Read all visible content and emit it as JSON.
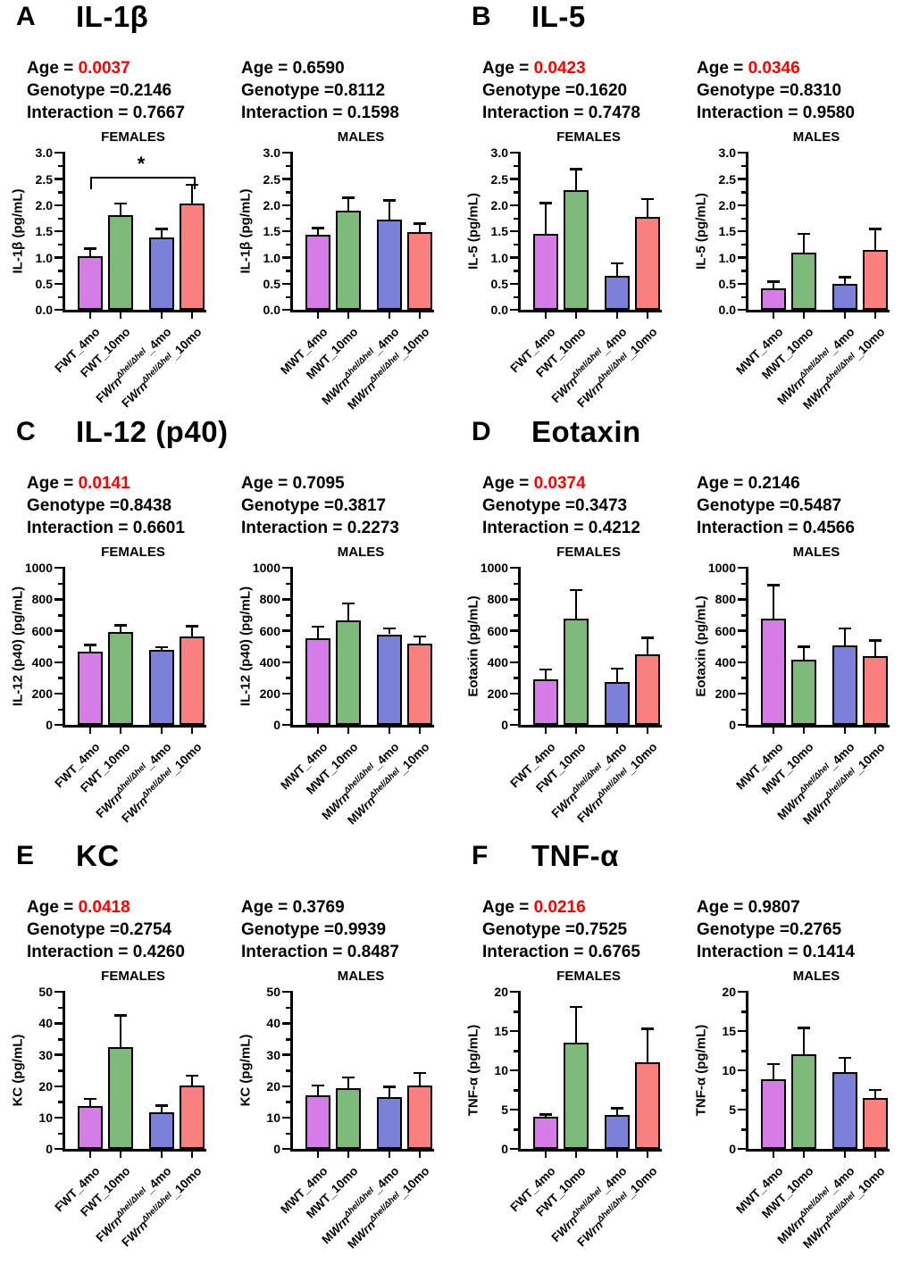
{
  "colors": {
    "bars": [
      "#d57ce6",
      "#7dba7a",
      "#7b80d9",
      "#fa7f7f"
    ],
    "significant": "#fe0000",
    "axis": "#000000"
  },
  "category_sets": {
    "F": {
      "parts": [
        [
          {
            "t": "FWT_4mo"
          }
        ],
        [
          {
            "t": "FWT_10mo"
          }
        ],
        [
          {
            "t": "F"
          },
          {
            "t": "Wrn",
            "i": true
          },
          {
            "t": "Δhel/Δhel",
            "i": true,
            "sup": true
          },
          {
            "t": "_4mo"
          }
        ],
        [
          {
            "t": "F"
          },
          {
            "t": "Wrn",
            "i": true
          },
          {
            "t": "Δhel/Δhel",
            "i": true,
            "sup": true
          },
          {
            "t": "_10mo"
          }
        ]
      ]
    },
    "M": {
      "parts": [
        [
          {
            "t": "MWT_4mo"
          }
        ],
        [
          {
            "t": "MWT_10mo"
          }
        ],
        [
          {
            "t": "M"
          },
          {
            "t": "Wrn",
            "i": true
          },
          {
            "t": "Δhel/Δhel",
            "i": true,
            "sup": true
          },
          {
            "t": "_4mo"
          }
        ],
        [
          {
            "t": "M"
          },
          {
            "t": "Wrn",
            "i": true
          },
          {
            "t": "Δhel/Δhel",
            "i": true,
            "sup": true
          },
          {
            "t": "_10mo"
          }
        ]
      ]
    }
  },
  "figure": {
    "panels": [
      {
        "letter": "A",
        "title": "IL-1β",
        "stats_female": {
          "age": {
            "label": "Age = ",
            "value": "0.0037",
            "red": true
          },
          "genotype": {
            "label": "Genotype =",
            "value": "0.2146",
            "red": false
          },
          "interaction": {
            "label": "Interaction = ",
            "value": "0.7667",
            "red": false
          }
        },
        "stats_male": {
          "age": {
            "label": "Age = ",
            "value": "0.6590",
            "red": false
          },
          "genotype": {
            "label": "Genotype =",
            "value": "0.8112",
            "red": false
          },
          "interaction": {
            "label": "Interaction = ",
            "value": "0.1598",
            "red": false
          }
        }
      },
      {
        "letter": "B",
        "title": "IL-5",
        "stats_female": {
          "age": {
            "label": "Age = ",
            "value": "0.0423",
            "red": true
          },
          "genotype": {
            "label": "Genotype =",
            "value": "0.1620",
            "red": false
          },
          "interaction": {
            "label": "Interaction = ",
            "value": "0.7478",
            "red": false
          }
        },
        "stats_male": {
          "age": {
            "label": "Age = ",
            "value": "0.0346",
            "red": true
          },
          "genotype": {
            "label": "Genotype =",
            "value": "0.8310",
            "red": false
          },
          "interaction": {
            "label": "Interaction = ",
            "value": "0.9580",
            "red": false
          }
        }
      },
      {
        "letter": "C",
        "title": "IL-12 (p40)",
        "stats_female": {
          "age": {
            "label": "Age = ",
            "value": "0.0141",
            "red": true
          },
          "genotype": {
            "label": "Genotype =",
            "value": "0.8438",
            "red": false
          },
          "interaction": {
            "label": "Interaction = ",
            "value": "0.6601",
            "red": false
          }
        },
        "stats_male": {
          "age": {
            "label": "Age = ",
            "value": "0.7095",
            "red": false
          },
          "genotype": {
            "label": "Genotype =",
            "value": "0.3817",
            "red": false
          },
          "interaction": {
            "label": "Interaction = ",
            "value": "0.2273",
            "red": false
          }
        }
      },
      {
        "letter": "D",
        "title": "Eotaxin",
        "stats_female": {
          "age": {
            "label": "Age = ",
            "value": "0.0374",
            "red": true
          },
          "genotype": {
            "label": "Genotype =",
            "value": "0.3473",
            "red": false
          },
          "interaction": {
            "label": "Interaction = ",
            "value": "0.4212",
            "red": false
          }
        },
        "stats_male": {
          "age": {
            "label": "Age = ",
            "value": "0.2146",
            "red": false
          },
          "genotype": {
            "label": "Genotype =",
            "value": "0.5487",
            "red": false
          },
          "interaction": {
            "label": "Interaction = ",
            "value": "0.4566",
            "red": false
          }
        }
      },
      {
        "letter": "E",
        "title": "KC",
        "stats_female": {
          "age": {
            "label": "Age = ",
            "value": "0.0418",
            "red": true
          },
          "genotype": {
            "label": "Genotype =",
            "value": "0.2754",
            "red": false
          },
          "interaction": {
            "label": "Interaction = ",
            "value": "0.4260",
            "red": false
          }
        },
        "stats_male": {
          "age": {
            "label": "Age = ",
            "value": "0.3769",
            "red": false
          },
          "genotype": {
            "label": "Genotype =",
            "value": "0.9939",
            "red": false
          },
          "interaction": {
            "label": "Interaction = ",
            "value": "0.8487",
            "red": false
          }
        }
      },
      {
        "letter": "F",
        "title": "TNF-α",
        "stats_female": {
          "age": {
            "label": "Age = ",
            "value": "0.0216",
            "red": true
          },
          "genotype": {
            "label": "Genotype =",
            "value": "0.7525",
            "red": false
          },
          "interaction": {
            "label": "Interaction = ",
            "value": "0.6765",
            "red": false
          }
        },
        "stats_male": {
          "age": {
            "label": "Age = ",
            "value": "0.9807",
            "red": false
          },
          "genotype": {
            "label": "Genotype =",
            "value": "0.2765",
            "red": false
          },
          "interaction": {
            "label": "Interaction = ",
            "value": "0.1414",
            "red": false
          }
        }
      }
    ]
  },
  "chart_data": [
    {
      "type": "bar",
      "panel": "A",
      "title": "FEMALES",
      "ylabel": "IL-1β (pg/mL)",
      "ylim": [
        0,
        3.0
      ],
      "yticks": [
        0,
        0.5,
        1.0,
        1.5,
        2.0,
        2.5,
        3.0
      ],
      "ytick_labels": [
        "0.0",
        "0.5",
        "1.0",
        "1.5",
        "2.0",
        "2.5",
        "3.0"
      ],
      "cat_set": "F",
      "categories": [
        "FWT_4mo",
        "FWT_10mo",
        "FWrnΔhel/Δhel_4mo",
        "FWrnΔhel/Δhel_10mo"
      ],
      "values": [
        1.03,
        1.81,
        1.38,
        2.03
      ],
      "errors": [
        0.14,
        0.22,
        0.17,
        0.36
      ],
      "sig": {
        "from": 0,
        "to": 3,
        "label": "*",
        "y": 2.55
      }
    },
    {
      "type": "bar",
      "panel": "A",
      "title": "MALES",
      "ylabel": "IL-1β (pg/mL)",
      "ylim": [
        0,
        3.0
      ],
      "yticks": [
        0,
        0.5,
        1.0,
        1.5,
        2.0,
        2.5,
        3.0
      ],
      "ytick_labels": [
        "0.0",
        "0.5",
        "1.0",
        "1.5",
        "2.0",
        "2.5",
        "3.0"
      ],
      "cat_set": "M",
      "categories": [
        "MWT_4mo",
        "MWT_10mo",
        "MWrnΔhel/Δhel_4mo",
        "MWrnΔhel/Δhel_10mo"
      ],
      "values": [
        1.44,
        1.89,
        1.73,
        1.49
      ],
      "errors": [
        0.12,
        0.25,
        0.36,
        0.16
      ]
    },
    {
      "type": "bar",
      "panel": "B",
      "title": "FEMALES",
      "ylabel": "IL-5 (pg/mL)",
      "ylim": [
        0,
        3.0
      ],
      "yticks": [
        0,
        0.5,
        1.0,
        1.5,
        2.0,
        2.5,
        3.0
      ],
      "ytick_labels": [
        "0.0",
        "0.5",
        "1.0",
        "1.5",
        "2.0",
        "2.5",
        "3.0"
      ],
      "cat_set": "F",
      "categories": [
        "FWT_4mo",
        "FWT_10mo",
        "FWrnΔhel/Δhel_4mo",
        "FWrnΔhel/Δhel_10mo"
      ],
      "values": [
        1.46,
        2.28,
        0.66,
        1.78
      ],
      "errors": [
        0.58,
        0.41,
        0.23,
        0.34
      ]
    },
    {
      "type": "bar",
      "panel": "B",
      "title": "MALES",
      "ylabel": "IL-5 (pg/mL)",
      "ylim": [
        0,
        3.0
      ],
      "yticks": [
        0,
        0.5,
        1.0,
        1.5,
        2.0,
        2.5,
        3.0
      ],
      "ytick_labels": [
        "0.0",
        "0.5",
        "1.0",
        "1.5",
        "2.0",
        "2.5",
        "3.0"
      ],
      "cat_set": "M",
      "categories": [
        "MWT_4mo",
        "MWT_10mo",
        "MWrnΔhel/Δhel_4mo",
        "MWrnΔhel/Δhel_10mo"
      ],
      "values": [
        0.42,
        1.1,
        0.5,
        1.15
      ],
      "errors": [
        0.12,
        0.35,
        0.13,
        0.4
      ]
    },
    {
      "type": "bar",
      "panel": "C",
      "title": "FEMALES",
      "ylabel": "IL-12 (p40) (pg/mL)",
      "ylim": [
        0,
        1000
      ],
      "yticks": [
        0,
        200,
        400,
        600,
        800,
        1000
      ],
      "ytick_labels": [
        "0",
        "200",
        "400",
        "600",
        "800",
        "1000"
      ],
      "cat_set": "F",
      "categories": [
        "FWT_4mo",
        "FWT_10mo",
        "FWrnΔhel/Δhel_4mo",
        "FWrnΔhel/Δhel_10mo"
      ],
      "values": [
        465,
        595,
        478,
        565
      ],
      "errors": [
        45,
        40,
        17,
        65
      ]
    },
    {
      "type": "bar",
      "panel": "C",
      "title": "MALES",
      "ylabel": "IL-12 (p40) (pg/mL)",
      "ylim": [
        0,
        1000
      ],
      "yticks": [
        0,
        200,
        400,
        600,
        800,
        1000
      ],
      "ytick_labels": [
        "0",
        "200",
        "400",
        "600",
        "800",
        "1000"
      ],
      "cat_set": "M",
      "categories": [
        "MWT_4mo",
        "MWT_10mo",
        "MWrnΔhel/Δhel_4mo",
        "MWrnΔhel/Δhel_10mo"
      ],
      "values": [
        555,
        665,
        578,
        518
      ],
      "errors": [
        70,
        110,
        37,
        47
      ]
    },
    {
      "type": "bar",
      "panel": "D",
      "title": "FEMALES",
      "ylabel": "Eotaxin (pg/mL)",
      "ylim": [
        0,
        1000
      ],
      "yticks": [
        0,
        200,
        400,
        600,
        800,
        1000
      ],
      "ytick_labels": [
        "0",
        "200",
        "400",
        "600",
        "800",
        "1000"
      ],
      "cat_set": "F",
      "categories": [
        "FWT_4mo",
        "FWT_10mo",
        "FWrnΔhel/Δhel_4mo",
        "FWrnΔhel/Δhel_10mo"
      ],
      "values": [
        290,
        678,
        272,
        448
      ],
      "errors": [
        65,
        182,
        86,
        107
      ]
    },
    {
      "type": "bar",
      "panel": "D",
      "title": "MALES",
      "ylabel": "Eotaxin (pg/mL)",
      "ylim": [
        0,
        1000
      ],
      "yticks": [
        0,
        200,
        400,
        600,
        800,
        1000
      ],
      "ytick_labels": [
        "0",
        "200",
        "400",
        "600",
        "800",
        "1000"
      ],
      "cat_set": "M",
      "categories": [
        "MWT_4mo",
        "MWT_10mo",
        "MWrnΔhel/Δhel_4mo",
        "MWrnΔhel/Δhel_10mo"
      ],
      "values": [
        678,
        418,
        505,
        438
      ],
      "errors": [
        212,
        80,
        110,
        100
      ]
    },
    {
      "type": "bar",
      "panel": "E",
      "title": "FEMALES",
      "ylabel": "KC (pg/mL)",
      "ylim": [
        0,
        50
      ],
      "yticks": [
        0,
        10,
        20,
        30,
        40,
        50
      ],
      "ytick_labels": [
        "0",
        "10",
        "20",
        "30",
        "40",
        "50"
      ],
      "cat_set": "F",
      "categories": [
        "FWT_4mo",
        "FWT_10mo",
        "FWrnΔhel/Δhel_4mo",
        "FWrnΔhel/Δhel_10mo"
      ],
      "values": [
        13.7,
        32.5,
        11.7,
        20.2
      ],
      "errors": [
        2.3,
        10.0,
        2.1,
        3.1
      ]
    },
    {
      "type": "bar",
      "panel": "E",
      "title": "MALES",
      "ylabel": "KC (pg/mL)",
      "ylim": [
        0,
        50
      ],
      "yticks": [
        0,
        10,
        20,
        30,
        40,
        50
      ],
      "ytick_labels": [
        "0",
        "10",
        "20",
        "30",
        "40",
        "50"
      ],
      "cat_set": "M",
      "categories": [
        "MWT_4mo",
        "MWT_10mo",
        "MWrnΔhel/Δhel_4mo",
        "MWrnΔhel/Δhel_10mo"
      ],
      "values": [
        17.2,
        19.5,
        16.5,
        20.2
      ],
      "errors": [
        3.1,
        3.3,
        3.3,
        4.0
      ]
    },
    {
      "type": "bar",
      "panel": "F",
      "title": "FEMALES",
      "ylabel": "TNF-α (pg/mL)",
      "ylim": [
        0,
        20
      ],
      "yticks": [
        0,
        5,
        10,
        15,
        20
      ],
      "ytick_labels": [
        "0",
        "5",
        "10",
        "15",
        "20"
      ],
      "cat_set": "F",
      "categories": [
        "FWT_4mo",
        "FWT_10mo",
        "FWrnΔhel/Δhel_4mo",
        "FWrnΔhel/Δhel_10mo"
      ],
      "values": [
        4.1,
        13.5,
        4.4,
        11.0
      ],
      "errors": [
        0.3,
        4.6,
        0.8,
        4.3
      ]
    },
    {
      "type": "bar",
      "panel": "F",
      "title": "MALES",
      "ylabel": "TNF-α (pg/mL)",
      "ylim": [
        0,
        20
      ],
      "yticks": [
        0,
        5,
        10,
        15,
        20
      ],
      "ytick_labels": [
        "0",
        "5",
        "10",
        "15",
        "20"
      ],
      "cat_set": "M",
      "categories": [
        "MWT_4mo",
        "MWT_10mo",
        "MWrnΔhel/Δhel_4mo",
        "MWrnΔhel/Δhel_10mo"
      ],
      "values": [
        8.9,
        12.1,
        9.8,
        6.5
      ],
      "errors": [
        1.9,
        3.3,
        1.8,
        1.0
      ]
    }
  ]
}
